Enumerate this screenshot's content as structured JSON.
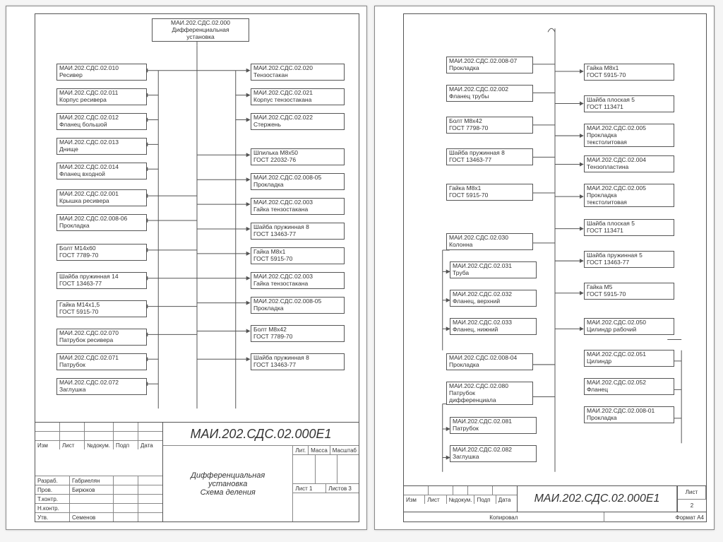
{
  "global": {
    "line_color": "#555555",
    "node_border": "#555555",
    "bg": "#ffffff",
    "font_size_node": 8.5,
    "font_size_title": 18
  },
  "page1": {
    "root": {
      "l1": "МАИ.202.СДС.02.000",
      "l2": "Дифференциальная",
      "l3": "установка"
    },
    "left_col": [
      {
        "l1": "МАИ.202.СДС.02.010",
        "l2": "Ресивер"
      },
      {
        "l1": "МАИ.202.СДС.02.011",
        "l2": "Корпус ресивера"
      },
      {
        "l1": "МАИ.202.СДС.02.012",
        "l2": "Фланец большой"
      },
      {
        "l1": "МАИ.202.СДС.02.013",
        "l2": "Днище"
      },
      {
        "l1": "МАИ.202.СДС.02.014",
        "l2": "Фланец входной"
      },
      {
        "l1": "МАИ.202.СДС.02.001",
        "l2": "Крышка ресивера"
      },
      {
        "l1": "МАИ.202.СДС.02.008-06",
        "l2": "Прокладка"
      },
      {
        "l1": "Болт М14х60",
        "l2": "ГОСТ 7789-70"
      },
      {
        "l1": "Шайба пружинная 14",
        "l2": "ГОСТ 13463-77"
      },
      {
        "l1": "Гайка М14х1,5",
        "l2": "ГОСТ 5915-70"
      },
      {
        "l1": "МАИ.202.СДС.02.070",
        "l2": "Патрубок ресивера"
      },
      {
        "l1": "МАИ.202.СДС.02.071",
        "l2": "Патрубок"
      },
      {
        "l1": "МАИ.202.СДС.02.072",
        "l2": "Заглушка"
      }
    ],
    "right_col": [
      {
        "l1": "МАИ.202.СДС.02.020",
        "l2": "Тензостакан"
      },
      {
        "l1": "МАИ.202.СДС.02.021",
        "l2": "Корпус тензостакана"
      },
      {
        "l1": "МАИ.202.СДС.02.022",
        "l2": "Стержень"
      },
      {
        "l1": "Шпилька М8х50",
        "l2": "ГОСТ 22032-76"
      },
      {
        "l1": "МАИ.202.СДС.02.008-05",
        "l2": "Прокладка"
      },
      {
        "l1": "МАИ.202.СДС.02.003",
        "l2": "Гайка тензостакана"
      },
      {
        "l1": "Шайба пружинная 8",
        "l2": "ГОСТ 13463-77"
      },
      {
        "l1": "Гайка М8х1",
        "l2": "ГОСТ 5915-70"
      },
      {
        "l1": "МАИ.202.СДС.02.003",
        "l2": "Гайка тензостакана"
      },
      {
        "l1": "МАИ.202.СДС.02.008-05",
        "l2": "Прокладка"
      },
      {
        "l1": "Болт М8х42",
        "l2": "ГОСТ 7789-70"
      },
      {
        "l1": "Шайба пружинная 8",
        "l2": "ГОСТ 13463-77"
      }
    ],
    "title_block": {
      "code": "МАИ.202.СДС.02.000Е1",
      "name_l1": "Дифференциальная",
      "name_l2": "установка",
      "name_l3": "Схема деления",
      "cols_left": [
        "Изм",
        "Лист",
        "№докум.",
        "Подп",
        "Дата"
      ],
      "rows_left": [
        [
          "Разраб.",
          "Габриелян"
        ],
        [
          "Пров.",
          "Бирюков"
        ],
        [
          "Т.контр.",
          ""
        ],
        [
          "Н.контр.",
          ""
        ],
        [
          "Утв.",
          "Семенов"
        ]
      ],
      "lit": "Лит.",
      "massa": "Масса",
      "mashtab": "Масштаб",
      "list": "Лист 1",
      "listov": "Листов 3"
    }
  },
  "page2": {
    "left_col": [
      {
        "l1": "МАИ.202.СДС.02.008-07",
        "l2": "Прокладка"
      },
      {
        "l1": "МАИ.202.СДС.02.002",
        "l2": "Фланец трубы"
      },
      {
        "l1": "Болт М8х42",
        "l2": "ГОСТ 7798-70"
      },
      {
        "l1": "Шайба пружинная 8",
        "l2": "ГОСТ 13463-77"
      },
      {
        "l1": "Гайка М8х1",
        "l2": "ГОСТ 5915-70"
      },
      {
        "l1": "МАИ.202.СДС.02.030",
        "l2": "Колонна"
      },
      {
        "l1": "МАИ.202.СДС.02.031",
        "l2": "Труба"
      },
      {
        "l1": "МАИ.202.СДС.02.032",
        "l2": "Фланец, верхний"
      },
      {
        "l1": "МАИ.202.СДС.02.033",
        "l2": "Фланец, нижний"
      },
      {
        "l1": "МАИ.202.СДС.02.008-04",
        "l2": "Прокладка"
      },
      {
        "l1": "МАИ.202.СДС.02.080",
        "l2": "Патрубок",
        "l3": "дифференциала"
      },
      {
        "l1": "МАИ.202.СДС.02.081",
        "l2": "Патрубок"
      },
      {
        "l1": "МАИ.202.СДС.02.082",
        "l2": "Заглушка"
      }
    ],
    "right_col": [
      {
        "l1": "Гайка М8х1",
        "l2": "ГОСТ 5915-70"
      },
      {
        "l1": "Шайба плоская 5",
        "l2": "ГОСТ 113471"
      },
      {
        "l1": "МАИ.202.СДС.02.005",
        "l2": "Прокладка",
        "l3": "текстолитовая"
      },
      {
        "l1": "МАИ.202.СДС.02.004",
        "l2": "Тензопластина"
      },
      {
        "l1": "МАИ.202.СДС.02.005",
        "l2": "Прокладка",
        "l3": "текстолитовая"
      },
      {
        "l1": "Шайба плоская 5",
        "l2": "ГОСТ 113471"
      },
      {
        "l1": "Шайба пружинная 5",
        "l2": "ГОСТ 13463-77"
      },
      {
        "l1": "Гайка М5",
        "l2": "ГОСТ 5915-70"
      },
      {
        "l1": "МАИ.202.СДС.02.050",
        "l2": "Цилиндр рабочий"
      },
      {
        "l1": "МАИ.202.СДС.02.051",
        "l2": "Цилиндр"
      },
      {
        "l1": "МАИ.202.СДС.02.052",
        "l2": "Фланец"
      },
      {
        "l1": "МАИ.202.СДС.02.008-01",
        "l2": "Прокладка"
      }
    ],
    "title_block": {
      "code": "МАИ.202.СДС.02.000Е1",
      "cols_left": [
        "Изм",
        "Лист",
        "№докум.",
        "Подп",
        "Дата"
      ],
      "list_label": "Лист",
      "list_no": "2",
      "kopiroval": "Копировал",
      "format": "Формат А4"
    }
  }
}
